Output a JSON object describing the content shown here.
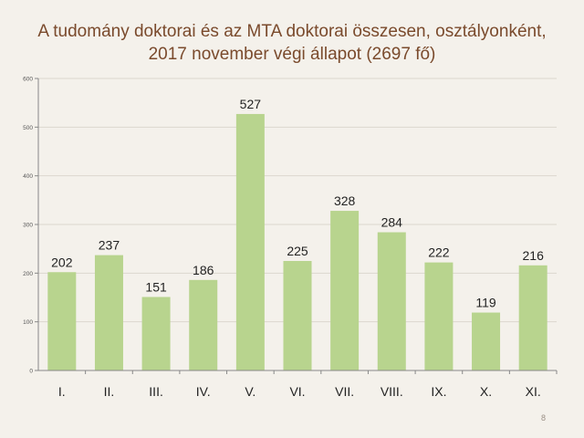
{
  "slide": {
    "title_line1": "A tudomány doktorai és az MTA doktorai összesen, osztályonként,",
    "title_line2": "2017 november végi állapot (2697 fő)",
    "page_number": "8"
  },
  "colors": {
    "background": "#f4f1eb",
    "title": "#7a4a2c",
    "bar": "#b8d48e",
    "grid": "#dcd7ce",
    "axis": "#888888"
  },
  "chart_data": {
    "type": "bar",
    "title": "A tudomány doktorai és az MTA doktorai összesen, osztályonként, 2017 november végi állapot (2697 fő)",
    "categories": [
      "I.",
      "II.",
      "III.",
      "IV.",
      "V.",
      "VI.",
      "VII.",
      "VIII.",
      "IX.",
      "X.",
      "XI."
    ],
    "values": [
      202,
      237,
      151,
      186,
      527,
      225,
      328,
      284,
      222,
      119,
      216
    ],
    "data_labels": [
      "202",
      "237",
      "151",
      "186",
      "527",
      "225",
      "328",
      "284",
      "222",
      "119",
      "216"
    ],
    "yticks": [
      0,
      100,
      200,
      300,
      400,
      500,
      600
    ],
    "ytick_labels": [
      "0",
      "100",
      "200",
      "300",
      "400",
      "500",
      "600"
    ],
    "ylim": [
      0,
      600
    ],
    "grid": true,
    "legend": "none"
  }
}
